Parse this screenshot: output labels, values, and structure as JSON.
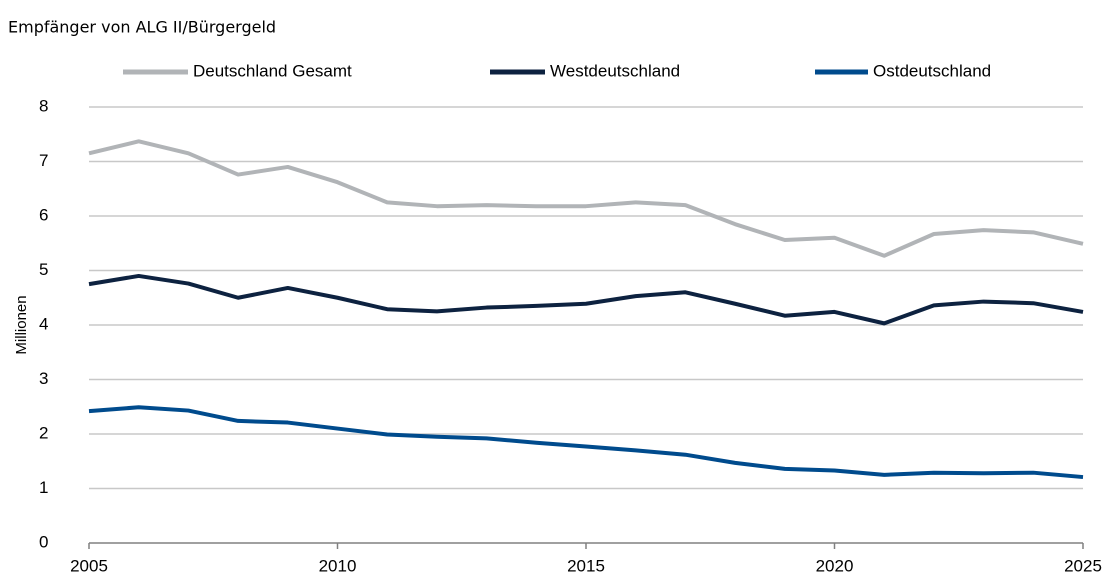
{
  "chart_data": {
    "type": "line",
    "title": "Empfänger von ALG II/Bürgergeld",
    "ylabel": "Millionen",
    "x": [
      2005,
      2006,
      2007,
      2008,
      2009,
      2010,
      2011,
      2012,
      2013,
      2014,
      2015,
      2016,
      2017,
      2018,
      2019,
      2020,
      2021,
      2022,
      2023,
      2024,
      2025
    ],
    "series": [
      {
        "name": "Deutschland Gesamt",
        "color": "#b1b4b7",
        "values": [
          7.15,
          7.37,
          7.15,
          6.76,
          6.9,
          6.62,
          6.25,
          6.18,
          6.2,
          6.18,
          6.18,
          6.25,
          6.2,
          5.85,
          5.56,
          5.6,
          5.27,
          5.67,
          5.74,
          5.7,
          5.49
        ]
      },
      {
        "name": "Westdeutschland",
        "color": "#0d2240",
        "values": [
          4.75,
          4.9,
          4.76,
          4.5,
          4.68,
          4.5,
          4.29,
          4.25,
          4.32,
          4.35,
          4.39,
          4.53,
          4.6,
          4.39,
          4.17,
          4.24,
          4.03,
          4.36,
          4.43,
          4.4,
          4.24
        ]
      },
      {
        "name": "Ostdeutschland",
        "color": "#004b8d",
        "values": [
          2.42,
          2.49,
          2.43,
          2.24,
          2.21,
          2.1,
          1.99,
          1.95,
          1.92,
          1.84,
          1.77,
          1.7,
          1.62,
          1.47,
          1.36,
          1.33,
          1.25,
          1.29,
          1.28,
          1.29,
          1.21
        ]
      }
    ],
    "xlim": [
      2005,
      2025
    ],
    "xticks": [
      2005,
      2010,
      2015,
      2020,
      2025
    ],
    "ylim": [
      0,
      8
    ],
    "yticks": [
      0,
      1,
      2,
      3,
      4,
      5,
      6,
      7,
      8
    ],
    "grid": true,
    "legend": "top"
  }
}
